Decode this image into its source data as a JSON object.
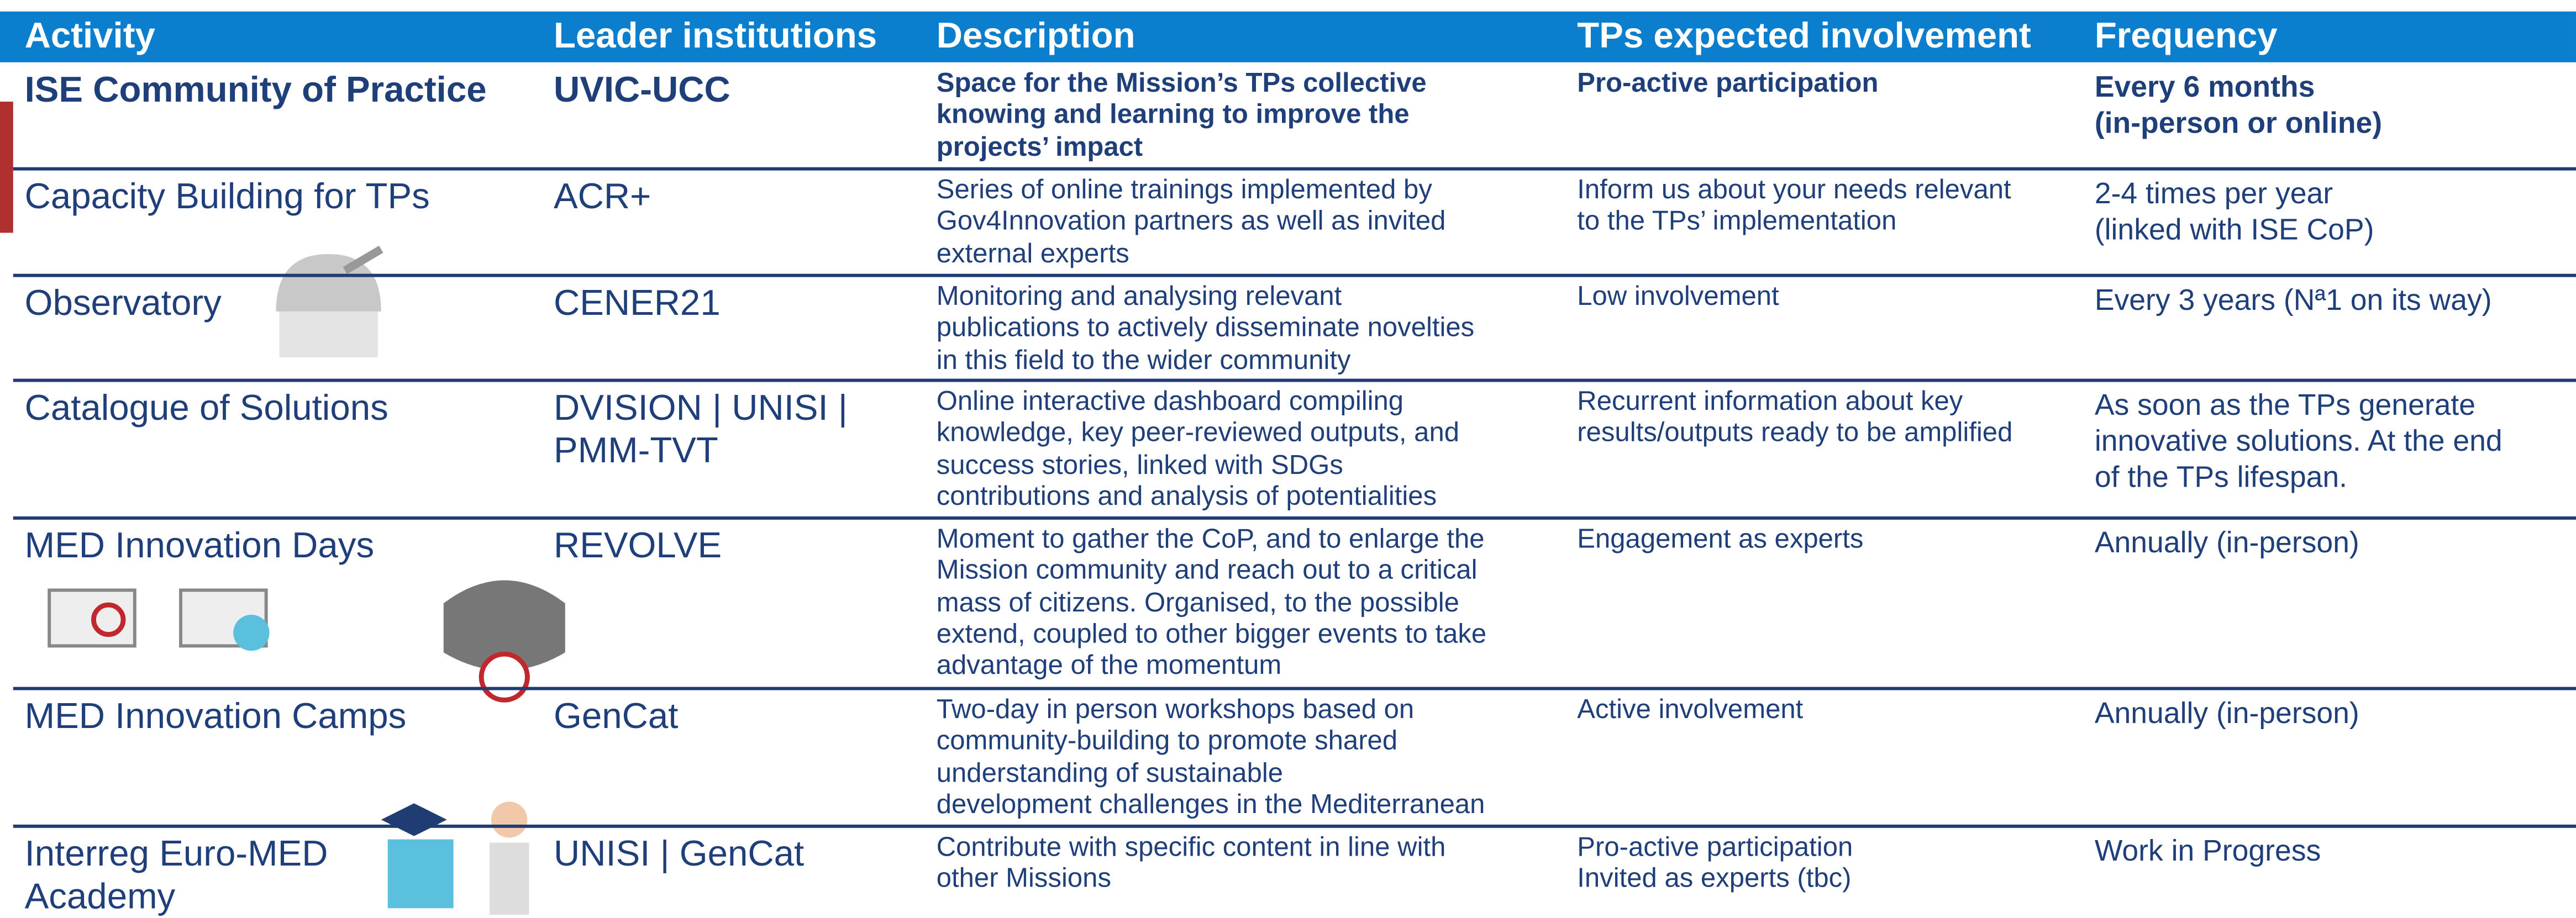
{
  "table": {
    "columns": [
      "Activity",
      "Leader institutions",
      "Description",
      "TPs expected involvement",
      "Frequency"
    ],
    "rows": [
      {
        "activity": [
          "ISE Community of Practice"
        ],
        "leader": [
          "UVIC-UCC"
        ],
        "description": [
          "Space for the Mission’s TPs collective",
          "knowing and learning to improve the",
          "projects’ impact"
        ],
        "involvement": [
          "Pro-active participation"
        ],
        "frequency": [
          "Every 6 months",
          "(in-person or online)"
        ]
      },
      {
        "activity": [
          "Capacity Building for TPs"
        ],
        "leader": [
          "ACR+"
        ],
        "description": [
          "Series of online trainings implemented by",
          "Gov4Innovation partners as well as invited",
          "external experts"
        ],
        "involvement": [
          "Inform us about your needs relevant",
          "to the TPs’ implementation"
        ],
        "frequency": [
          "2-4 times per year",
          "(linked with ISE CoP)"
        ]
      },
      {
        "activity": [
          "Observatory"
        ],
        "leader": [
          "CENER21"
        ],
        "description": [
          "Monitoring and analysing relevant",
          "publications to actively disseminate novelties",
          "in this field to the wider community"
        ],
        "involvement": [
          "Low involvement"
        ],
        "frequency": [
          "Every 3 years (Nª1 on its way)"
        ]
      },
      {
        "activity": [
          "Catalogue of Solutions"
        ],
        "leader": [
          "DVISION | UNISI |",
          "PMM-TVT"
        ],
        "description": [
          "Online interactive dashboard compiling",
          "knowledge, key peer-reviewed outputs, and",
          "success stories, linked with SDGs",
          "contributions and analysis of potentialities"
        ],
        "involvement": [
          "Recurrent information about key",
          "results/outputs ready to be amplified"
        ],
        "frequency": [
          "As soon as the TPs generate",
          "innovative solutions. At the end",
          "of the TPs lifespan."
        ]
      },
      {
        "activity": [
          "MED Innovation Days"
        ],
        "leader": [
          "REVOLVE"
        ],
        "description": [
          "Moment to gather the CoP, and to enlarge the",
          "Mission community and reach out to a critical",
          "mass of citizens. Organised, to the possible",
          "extend, coupled to other bigger events to take",
          "advantage of the momentum"
        ],
        "involvement": [
          "Engagement as experts"
        ],
        "frequency": [
          "Annually (in-person)"
        ]
      },
      {
        "activity": [
          "MED Innovation Camps"
        ],
        "leader": [
          "GenCat"
        ],
        "description": [
          "Two-day in person workshops based on",
          "community-building to promote shared",
          "understanding of sustainable",
          "development challenges in the Mediterranean"
        ],
        "involvement": [
          "Active involvement"
        ],
        "frequency": [
          "Annually (in-person)"
        ]
      },
      {
        "activity": [
          "Interreg Euro-MED",
          "Academy"
        ],
        "leader": [
          "UNISI | GenCat"
        ],
        "description": [
          "Contribute with specific content in line with",
          "other Missions"
        ],
        "involvement": [
          "Pro-active participation",
          "Invited as experts (tbc)"
        ],
        "frequency": [
          "Work in Progress"
        ]
      }
    ]
  }
}
